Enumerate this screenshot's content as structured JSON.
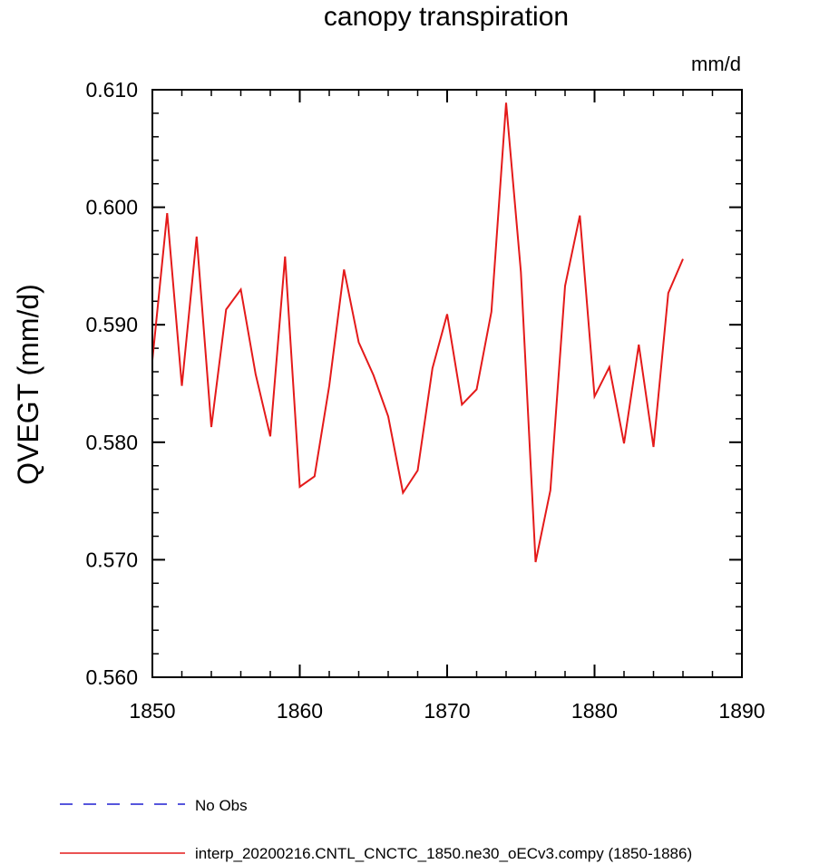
{
  "chart_data": {
    "type": "line",
    "title": "canopy transpiration",
    "units_label": "mm/d",
    "ylabel": "QVEGT  (mm/d)",
    "xlabel": "",
    "xlim": [
      1850,
      1890
    ],
    "ylim": [
      0.56,
      0.61
    ],
    "x_ticks": [
      1850,
      1860,
      1870,
      1880,
      1890
    ],
    "x_tick_labels": [
      "1850",
      "1860",
      "1870",
      "1880",
      "1890"
    ],
    "y_ticks": [
      0.56,
      0.57,
      0.58,
      0.59,
      0.6,
      0.61
    ],
    "y_tick_labels": [
      "0.560",
      "0.570",
      "0.580",
      "0.590",
      "0.600",
      "0.610"
    ],
    "x_minor_step": 2,
    "y_minor_step": 0.002,
    "grid": false,
    "legend_placement": "bottom-left",
    "legend": [
      {
        "label": "No Obs",
        "color": "#1f1fd0",
        "style": "dashed"
      },
      {
        "label": "interp_20200216.CNTL_CNCTC_1850.ne30_oECv3.compy (1850-1886)",
        "color": "#e41a1a",
        "style": "solid"
      }
    ],
    "series": [
      {
        "color": "#e41a1a",
        "x": [
          1850,
          1851,
          1852,
          1853,
          1854,
          1855,
          1856,
          1857,
          1858,
          1859,
          1860,
          1861,
          1862,
          1863,
          1864,
          1865,
          1866,
          1867,
          1868,
          1869,
          1870,
          1871,
          1872,
          1873,
          1874,
          1875,
          1876,
          1877,
          1878,
          1879,
          1880,
          1881,
          1882,
          1883,
          1884,
          1885,
          1886
        ],
        "values": [
          0.587,
          0.5995,
          0.5848,
          0.5975,
          0.5813,
          0.5913,
          0.593,
          0.5858,
          0.5805,
          0.5958,
          0.5762,
          0.5771,
          0.5848,
          0.5947,
          0.5885,
          0.5857,
          0.5822,
          0.5757,
          0.5776,
          0.5863,
          0.5909,
          0.5832,
          0.5845,
          0.5911,
          0.6089,
          0.5945,
          0.5698,
          0.5759,
          0.5933,
          0.5993,
          0.5839,
          0.5864,
          0.5799,
          0.5883,
          0.5796,
          0.5927,
          0.5956
        ]
      }
    ]
  }
}
